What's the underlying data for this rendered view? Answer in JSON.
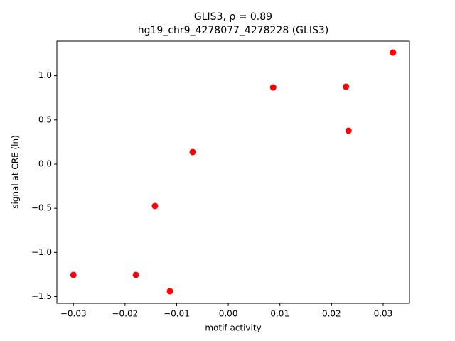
{
  "chart_data": {
    "type": "scatter",
    "title": "GLIS3, ρ = 0.89",
    "subtitle": "hg19_chr9_4278077_4278228 (GLIS3)",
    "x_label": "motif activity",
    "y_label": "signal at CRE (ln)",
    "color": "#ff0000",
    "x": [
      -0.03,
      -0.0179,
      -0.0113,
      -0.0142,
      -0.0069,
      0.0087,
      0.0228,
      0.0233,
      0.0319
    ],
    "values": [
      -1.254,
      -1.254,
      -1.439,
      -0.474,
      0.137,
      0.868,
      0.876,
      0.378,
      1.262
    ],
    "xlim": [
      -0.0332,
      0.0351
    ],
    "ylim": [
      -1.576,
      1.391
    ],
    "xticks": [
      {
        "value": -0.03,
        "label": "−0.03"
      },
      {
        "value": -0.02,
        "label": "−0.02"
      },
      {
        "value": -0.01,
        "label": "−0.01"
      },
      {
        "value": 0,
        "label": "0.00"
      },
      {
        "value": 0.01,
        "label": "0.01"
      },
      {
        "value": 0.02,
        "label": "0.02"
      },
      {
        "value": 0.03,
        "label": "0.03"
      }
    ],
    "yticks": [
      {
        "value": -1.5,
        "label": "−1.5"
      },
      {
        "value": -1,
        "label": "−1.0"
      },
      {
        "value": -0.5,
        "label": "−0.5"
      },
      {
        "value": 0,
        "label": "0.0"
      },
      {
        "value": 0.5,
        "label": "0.5"
      },
      {
        "value": 1,
        "label": "1.0"
      }
    ],
    "grid": false
  }
}
